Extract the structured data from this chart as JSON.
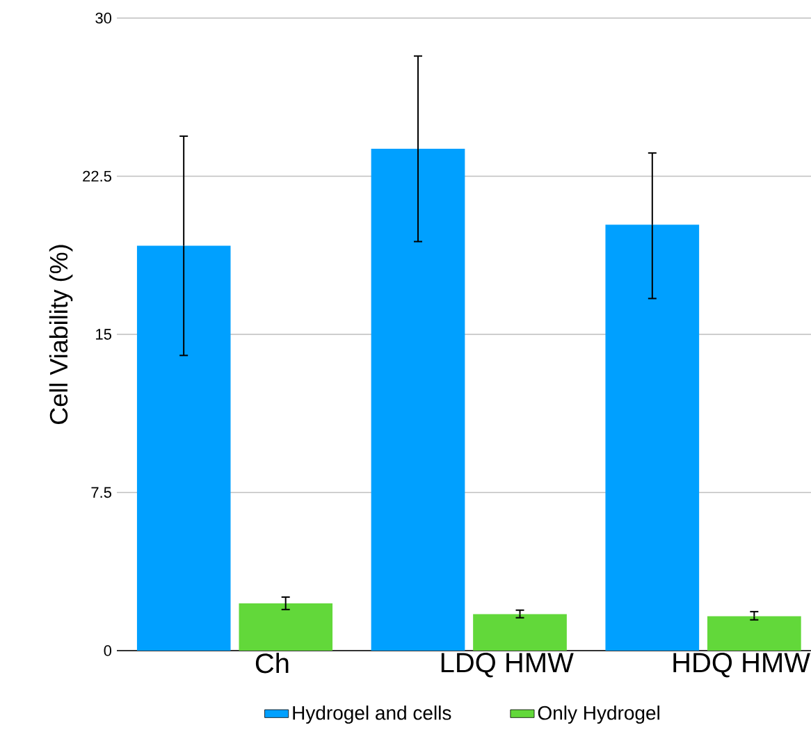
{
  "chart_data": {
    "type": "bar",
    "ylabel": "Cell Viability (%)",
    "categories": [
      "Ch",
      "LDQ HMW",
      "HDQ HMW"
    ],
    "series": [
      {
        "name": "Hydrogel and cells",
        "color": "#00a0ff",
        "values": [
          19.2,
          23.8,
          20.2
        ],
        "errors": [
          [
            14.0,
            24.4
          ],
          [
            19.4,
            28.2
          ],
          [
            16.7,
            23.6
          ]
        ]
      },
      {
        "name": "Only Hydrogel",
        "color": "#62d83a",
        "values": [
          2.24,
          1.73,
          1.63
        ],
        "errors": [
          [
            1.95,
            2.54
          ],
          [
            1.56,
            1.92
          ],
          [
            1.46,
            1.85
          ]
        ]
      }
    ],
    "ylim": [
      0,
      30
    ],
    "yticks": [
      0,
      7.5,
      15,
      22.5,
      30
    ],
    "grid": "y",
    "legend": "bottom"
  }
}
